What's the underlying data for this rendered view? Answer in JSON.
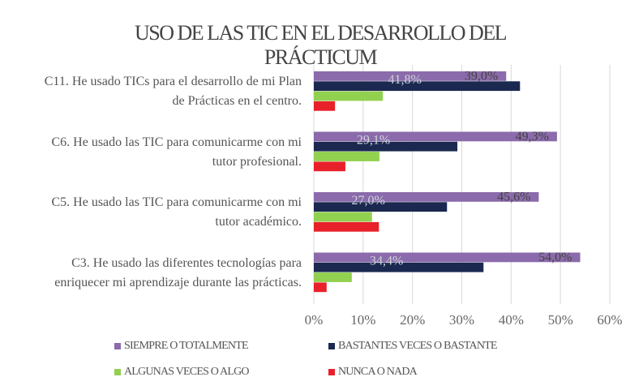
{
  "chart_data": {
    "type": "hbar",
    "title": "USO DE LAS TIC EN EL DESARROLLO DEL\nPRÁCTICUM",
    "categories": [
      "C11. He usado TICs para el desarrollo de mi Plan\nde Prácticas en el centro.",
      "C6. He usado las TIC para comunicarme con mi\ntutor profesional.",
      "C5. He usado las TIC para comunicarme con mi\ntutor académico.",
      "C3. He usado las diferentes tecnologías para\nenriquecer mi aprendizaje durante las prácticas."
    ],
    "series": [
      {
        "name": "SIEMPRE O TOTALMENTE",
        "color": "#8b6bab",
        "values": [
          39.0,
          49.3,
          45.6,
          54.0
        ],
        "value_labels": [
          "39,0%",
          "49,3%",
          "45,6%",
          "54,0%"
        ]
      },
      {
        "name": "BASTANTES VECES O BASTANTE",
        "color": "#1b2850",
        "values": [
          41.8,
          29.1,
          27.0,
          34.4
        ],
        "value_labels": [
          "41,8%",
          "29,1%",
          "27,0%",
          "34,4%"
        ]
      },
      {
        "name": "ALGUNAS VECES O ALGO",
        "color": "#92d050",
        "values": [
          14,
          13.3,
          11.8,
          7.7
        ]
      },
      {
        "name": "NUNCA O NADA",
        "color": "#e8202a",
        "values": [
          4.3,
          6.4,
          13.2,
          2.6
        ]
      }
    ],
    "xlim": [
      0,
      60
    ],
    "xticks": [
      {
        "value": 0,
        "label": "0%"
      },
      {
        "value": 10,
        "label": "10%"
      },
      {
        "value": 20,
        "label": "20%"
      },
      {
        "value": 30,
        "label": "30%"
      },
      {
        "value": 40,
        "label": "40%"
      },
      {
        "value": 50,
        "label": "50%"
      },
      {
        "value": 60,
        "label": "60%"
      }
    ],
    "grid": true,
    "legend": "bottom"
  }
}
